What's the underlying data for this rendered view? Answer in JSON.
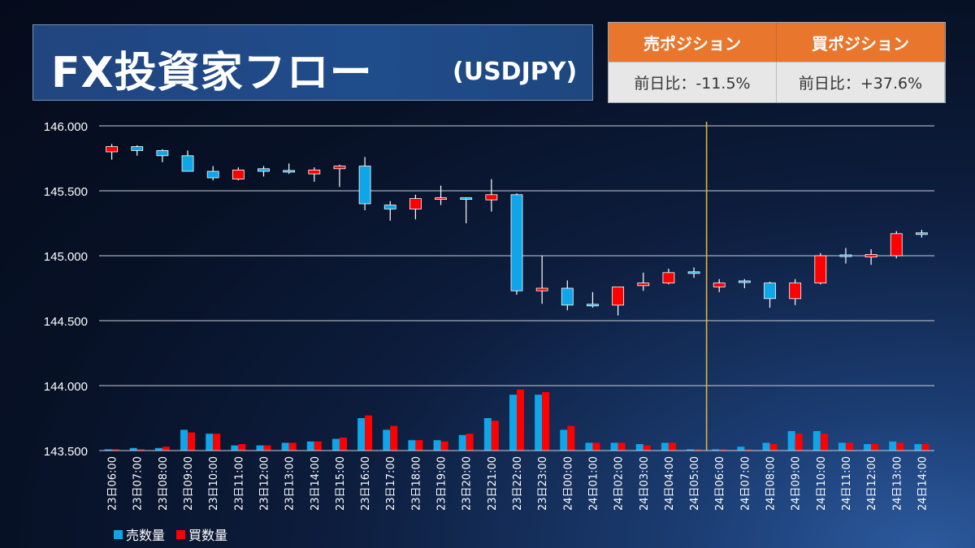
{
  "title": "FX投資家フロー",
  "subtitle": "(USDJPY)",
  "sell_header": "売ポジション",
  "buy_header": "買ポジション",
  "sell_value": "前日比：-11.5%",
  "buy_value": "前日比：+37.6%",
  "legend": [
    {
      "name": "売数量",
      "color": "#0ea5e9"
    },
    {
      "name": "買数量",
      "color": "#ff0000"
    }
  ],
  "chart_data": {
    "type": "candlestick",
    "ylim": [
      143.5,
      146.0
    ],
    "y_ticks": [
      146.0,
      145.5,
      145.0,
      144.5,
      144.0,
      143.5
    ],
    "y_tick_labels": [
      "146.000",
      "145.500",
      "145.000",
      "144.500",
      "144.000",
      "143.500"
    ],
    "grid": true,
    "vertical_marker_after_index": 23,
    "candles": [
      {
        "x": "23日06:00",
        "o": 145.8,
        "h": 145.86,
        "l": 145.74,
        "c": 145.84,
        "color": "red"
      },
      {
        "x": "23日07:00",
        "o": 145.84,
        "h": 145.85,
        "l": 145.77,
        "c": 145.81,
        "color": "blue"
      },
      {
        "x": "23日08:00",
        "o": 145.81,
        "h": 145.82,
        "l": 145.72,
        "c": 145.77,
        "color": "blue"
      },
      {
        "x": "23日09:00",
        "o": 145.77,
        "h": 145.81,
        "l": 145.65,
        "c": 145.65,
        "color": "blue"
      },
      {
        "x": "23日10:00",
        "o": 145.65,
        "h": 145.69,
        "l": 145.58,
        "c": 145.6,
        "color": "blue"
      },
      {
        "x": "23日11:00",
        "o": 145.59,
        "h": 145.68,
        "l": 145.58,
        "c": 145.66,
        "color": "red"
      },
      {
        "x": "23日12:00",
        "o": 145.67,
        "h": 145.69,
        "l": 145.61,
        "c": 145.65,
        "color": "blue"
      },
      {
        "x": "23日13:00",
        "o": 145.65,
        "h": 145.71,
        "l": 145.63,
        "c": 145.64,
        "color": "blue"
      },
      {
        "x": "23日14:00",
        "o": 145.63,
        "h": 145.68,
        "l": 145.57,
        "c": 145.66,
        "color": "red"
      },
      {
        "x": "23日15:00",
        "o": 145.67,
        "h": 145.7,
        "l": 145.53,
        "c": 145.69,
        "color": "red"
      },
      {
        "x": "23日16:00",
        "o": 145.69,
        "h": 145.76,
        "l": 145.35,
        "c": 145.4,
        "color": "blue"
      },
      {
        "x": "23日17:00",
        "o": 145.39,
        "h": 145.42,
        "l": 145.27,
        "c": 145.36,
        "color": "blue"
      },
      {
        "x": "23日18:00",
        "o": 145.36,
        "h": 145.47,
        "l": 145.28,
        "c": 145.44,
        "color": "red"
      },
      {
        "x": "23日19:00",
        "o": 145.44,
        "h": 145.54,
        "l": 145.39,
        "c": 145.43,
        "color": "red"
      },
      {
        "x": "23日20:00",
        "o": 145.43,
        "h": 145.45,
        "l": 145.25,
        "c": 145.44,
        "color": "blue"
      },
      {
        "x": "23日21:00",
        "o": 145.43,
        "h": 145.59,
        "l": 145.34,
        "c": 145.47,
        "color": "red"
      },
      {
        "x": "23日22:00",
        "o": 145.47,
        "h": 145.48,
        "l": 144.7,
        "c": 144.73,
        "color": "blue"
      },
      {
        "x": "23日23:00",
        "o": 144.73,
        "h": 145.0,
        "l": 144.63,
        "c": 144.75,
        "color": "red"
      },
      {
        "x": "24日00:00",
        "o": 144.75,
        "h": 144.81,
        "l": 144.58,
        "c": 144.62,
        "color": "blue"
      },
      {
        "x": "24日01:00",
        "o": 144.62,
        "h": 144.72,
        "l": 144.6,
        "c": 144.61,
        "color": "blue"
      },
      {
        "x": "24日02:00",
        "o": 144.62,
        "h": 144.76,
        "l": 144.54,
        "c": 144.76,
        "color": "red"
      },
      {
        "x": "24日03:00",
        "o": 144.77,
        "h": 144.87,
        "l": 144.73,
        "c": 144.79,
        "color": "red"
      },
      {
        "x": "24日04:00",
        "o": 144.79,
        "h": 144.9,
        "l": 144.78,
        "c": 144.87,
        "color": "red"
      },
      {
        "x": "24日05:00",
        "o": 144.87,
        "h": 144.91,
        "l": 144.83,
        "c": 144.86,
        "color": "blue"
      },
      {
        "x": "24日06:00",
        "o": 144.76,
        "h": 144.82,
        "l": 144.72,
        "c": 144.79,
        "color": "red"
      },
      {
        "x": "24日07:00",
        "o": 144.8,
        "h": 144.82,
        "l": 144.75,
        "c": 144.79,
        "color": "blue"
      },
      {
        "x": "24日08:00",
        "o": 144.79,
        "h": 144.8,
        "l": 144.6,
        "c": 144.67,
        "color": "blue"
      },
      {
        "x": "24日09:00",
        "o": 144.67,
        "h": 144.82,
        "l": 144.62,
        "c": 144.79,
        "color": "red"
      },
      {
        "x": "24日10:00",
        "o": 144.79,
        "h": 145.02,
        "l": 144.78,
        "c": 145.0,
        "color": "red"
      },
      {
        "x": "24日11:00",
        "o": 145.0,
        "h": 145.06,
        "l": 144.94,
        "c": 145.0,
        "color": "blue"
      },
      {
        "x": "24日12:00",
        "o": 144.99,
        "h": 145.05,
        "l": 144.93,
        "c": 145.01,
        "color": "red"
      },
      {
        "x": "24日13:00",
        "o": 145.0,
        "h": 145.19,
        "l": 144.98,
        "c": 145.17,
        "color": "red"
      },
      {
        "x": "24日14:00",
        "o": 145.17,
        "h": 145.2,
        "l": 145.14,
        "c": 145.17,
        "color": "blue"
      }
    ],
    "volume": [
      {
        "sell": 143.51,
        "buy": 143.51
      },
      {
        "sell": 143.52,
        "buy": 143.51
      },
      {
        "sell": 143.52,
        "buy": 143.53
      },
      {
        "sell": 143.66,
        "buy": 143.64
      },
      {
        "sell": 143.63,
        "buy": 143.63
      },
      {
        "sell": 143.54,
        "buy": 143.55
      },
      {
        "sell": 143.54,
        "buy": 143.54
      },
      {
        "sell": 143.56,
        "buy": 143.56
      },
      {
        "sell": 143.57,
        "buy": 143.57
      },
      {
        "sell": 143.59,
        "buy": 143.6
      },
      {
        "sell": 143.75,
        "buy": 143.77
      },
      {
        "sell": 143.66,
        "buy": 143.69
      },
      {
        "sell": 143.58,
        "buy": 143.58
      },
      {
        "sell": 143.58,
        "buy": 143.57
      },
      {
        "sell": 143.62,
        "buy": 143.63
      },
      {
        "sell": 143.75,
        "buy": 143.73
      },
      {
        "sell": 143.93,
        "buy": 143.97
      },
      {
        "sell": 143.93,
        "buy": 143.95
      },
      {
        "sell": 143.66,
        "buy": 143.69
      },
      {
        "sell": 143.56,
        "buy": 143.56
      },
      {
        "sell": 143.56,
        "buy": 143.56
      },
      {
        "sell": 143.55,
        "buy": 143.54
      },
      {
        "sell": 143.56,
        "buy": 143.56
      },
      {
        "sell": 143.51,
        "buy": 143.51
      },
      {
        "sell": 143.51,
        "buy": 143.51
      },
      {
        "sell": 143.53,
        "buy": 143.51
      },
      {
        "sell": 143.56,
        "buy": 143.55
      },
      {
        "sell": 143.65,
        "buy": 143.63
      },
      {
        "sell": 143.65,
        "buy": 143.63
      },
      {
        "sell": 143.56,
        "buy": 143.56
      },
      {
        "sell": 143.55,
        "buy": 143.55
      },
      {
        "sell": 143.57,
        "buy": 143.56
      },
      {
        "sell": 143.55,
        "buy": 143.55
      }
    ]
  }
}
